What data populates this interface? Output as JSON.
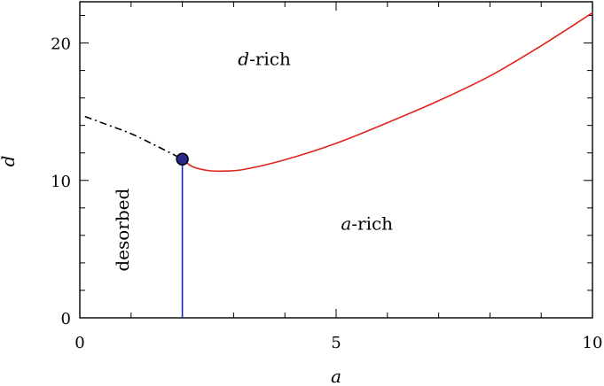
{
  "chart_data": {
    "type": "line",
    "title": "",
    "xlabel": "a",
    "ylabel": "d",
    "xlim": [
      0,
      10
    ],
    "ylim": [
      0,
      23
    ],
    "x_ticks": [
      0,
      5,
      10
    ],
    "y_ticks": [
      0,
      10,
      20
    ],
    "grid": false,
    "colors": {
      "boundary_red": "#e2231a",
      "boundary_blue": "#1f1fcf",
      "boundary_dashdot": "#000000",
      "critical_point_fill": "#2a2a8c"
    },
    "series": [
      {
        "style": "solid",
        "color": "#e2231a",
        "points": [
          [
            2.0,
            11.55
          ],
          [
            2.2,
            11.0
          ],
          [
            2.5,
            10.72
          ],
          [
            2.8,
            10.68
          ],
          [
            3.2,
            10.8
          ],
          [
            4.0,
            11.5
          ],
          [
            5.0,
            12.7
          ],
          [
            6.0,
            14.2
          ],
          [
            7.0,
            15.8
          ],
          [
            8.0,
            17.6
          ],
          [
            9.0,
            19.8
          ],
          [
            10.0,
            22.2
          ]
        ]
      },
      {
        "style": "solid",
        "color": "#1f1fcf",
        "points": [
          [
            2.0,
            0.0
          ],
          [
            2.0,
            11.55
          ]
        ]
      },
      {
        "style": "dash-dot",
        "color": "#000000",
        "points": [
          [
            0.1,
            14.65
          ],
          [
            0.5,
            14.1
          ],
          [
            1.0,
            13.4
          ],
          [
            1.5,
            12.5
          ],
          [
            2.0,
            11.55
          ]
        ]
      }
    ],
    "critical_point": {
      "x": 2.0,
      "y": 11.55
    },
    "region_labels": [
      {
        "italic": "d",
        "rest": "-rich",
        "x": 3.6,
        "y": 18.4,
        "rotate": 0
      },
      {
        "italic": "a",
        "rest": "-rich",
        "x": 5.6,
        "y": 6.4,
        "rotate": 0
      },
      {
        "italic": "",
        "rest": "desorbed",
        "x": 0.95,
        "y": 6.4,
        "rotate": -90
      }
    ]
  }
}
